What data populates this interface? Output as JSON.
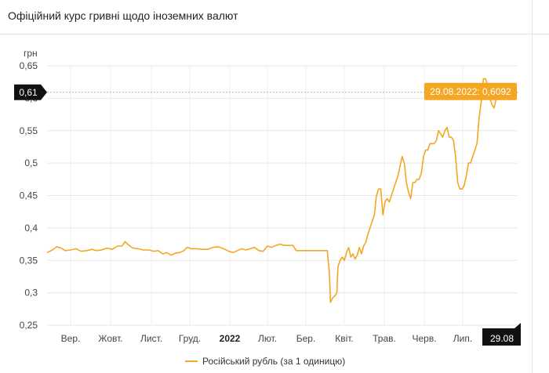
{
  "header": {
    "title": "Офіційний курс гривні щодо іноземних валют"
  },
  "colors": {
    "series": "#f5a623",
    "accent_dark": "#111111",
    "tooltip_bg": "#f5a623"
  },
  "chart_data": {
    "type": "line",
    "ylabel": "грн",
    "ylim": [
      0.25,
      0.65
    ],
    "yticks": [
      "0,25",
      "0,3",
      "0,35",
      "0,4",
      "0,45",
      "0,5",
      "0,55",
      "0,6",
      "0,65"
    ],
    "xticks": [
      "Вер.",
      "Жовт.",
      "Лист.",
      "Груд.",
      "2022",
      "Лют.",
      "Бер.",
      "Квіт.",
      "Трав.",
      "Черв.",
      "Лип."
    ],
    "xticks_bold": [
      "2022"
    ],
    "grid": true,
    "crosshair": {
      "y_label": "0,61",
      "x_label": "29.08"
    },
    "tooltip": "29.08.2022: 0,6092",
    "legend": {
      "position": "bottom",
      "entries": [
        "Російський рубль (за 1 одиницю)"
      ]
    },
    "series": [
      {
        "name": "Російський рубль (за 1 одиницю)",
        "points": [
          [
            0,
            0.362
          ],
          [
            5,
            0.366
          ],
          [
            9,
            0.371
          ],
          [
            13,
            0.369
          ],
          [
            17,
            0.365
          ],
          [
            22,
            0.366
          ],
          [
            27,
            0.368
          ],
          [
            32,
            0.364
          ],
          [
            37,
            0.365
          ],
          [
            42,
            0.367
          ],
          [
            46,
            0.365
          ],
          [
            51,
            0.366
          ],
          [
            56,
            0.369
          ],
          [
            61,
            0.367
          ],
          [
            66,
            0.372
          ],
          [
            70,
            0.372
          ],
          [
            73,
            0.379
          ],
          [
            76,
            0.374
          ],
          [
            80,
            0.369
          ],
          [
            85,
            0.368
          ],
          [
            90,
            0.366
          ],
          [
            95,
            0.366
          ],
          [
            100,
            0.364
          ],
          [
            104,
            0.365
          ],
          [
            108,
            0.36
          ],
          [
            112,
            0.362
          ],
          [
            116,
            0.358
          ],
          [
            120,
            0.361
          ],
          [
            124,
            0.362
          ],
          [
            128,
            0.365
          ],
          [
            131,
            0.37
          ],
          [
            135,
            0.368
          ],
          [
            140,
            0.368
          ],
          [
            145,
            0.367
          ],
          [
            150,
            0.367
          ],
          [
            155,
            0.37
          ],
          [
            160,
            0.371
          ],
          [
            165,
            0.368
          ],
          [
            170,
            0.364
          ],
          [
            174,
            0.362
          ],
          [
            178,
            0.365
          ],
          [
            182,
            0.368
          ],
          [
            186,
            0.366
          ],
          [
            190,
            0.368
          ],
          [
            194,
            0.37
          ],
          [
            198,
            0.365
          ],
          [
            202,
            0.364
          ],
          [
            206,
            0.372
          ],
          [
            210,
            0.37
          ],
          [
            214,
            0.373
          ],
          [
            218,
            0.375
          ],
          [
            222,
            0.373
          ],
          [
            226,
            0.373
          ],
          [
            230,
            0.373
          ],
          [
            233,
            0.365
          ],
          [
            238,
            0.365
          ],
          [
            245,
            0.365
          ],
          [
            252,
            0.365
          ],
          [
            258,
            0.365
          ],
          [
            262,
            0.365
          ],
          [
            264,
            0.33
          ],
          [
            265,
            0.285
          ],
          [
            267,
            0.292
          ],
          [
            269,
            0.295
          ],
          [
            271,
            0.3
          ],
          [
            272,
            0.34
          ],
          [
            274,
            0.35
          ],
          [
            276,
            0.355
          ],
          [
            278,
            0.35
          ],
          [
            280,
            0.362
          ],
          [
            282,
            0.37
          ],
          [
            284,
            0.355
          ],
          [
            286,
            0.36
          ],
          [
            288,
            0.352
          ],
          [
            290,
            0.358
          ],
          [
            292,
            0.37
          ],
          [
            294,
            0.36
          ],
          [
            296,
            0.372
          ],
          [
            298,
            0.378
          ],
          [
            300,
            0.39
          ],
          [
            302,
            0.4
          ],
          [
            304,
            0.41
          ],
          [
            306,
            0.42
          ],
          [
            308,
            0.45
          ],
          [
            310,
            0.46
          ],
          [
            312,
            0.46
          ],
          [
            314,
            0.42
          ],
          [
            316,
            0.44
          ],
          [
            318,
            0.445
          ],
          [
            320,
            0.44
          ],
          [
            322,
            0.45
          ],
          [
            324,
            0.46
          ],
          [
            326,
            0.47
          ],
          [
            328,
            0.48
          ],
          [
            330,
            0.495
          ],
          [
            332,
            0.51
          ],
          [
            334,
            0.5
          ],
          [
            336,
            0.47
          ],
          [
            338,
            0.455
          ],
          [
            340,
            0.445
          ],
          [
            342,
            0.47
          ],
          [
            344,
            0.47
          ],
          [
            346,
            0.475
          ],
          [
            348,
            0.475
          ],
          [
            350,
            0.485
          ],
          [
            352,
            0.51
          ],
          [
            354,
            0.52
          ],
          [
            356,
            0.52
          ],
          [
            358,
            0.53
          ],
          [
            360,
            0.53
          ],
          [
            362,
            0.53
          ],
          [
            364,
            0.535
          ],
          [
            366,
            0.55
          ],
          [
            368,
            0.545
          ],
          [
            370,
            0.54
          ],
          [
            372,
            0.55
          ],
          [
            374,
            0.555
          ],
          [
            376,
            0.54
          ],
          [
            378,
            0.54
          ],
          [
            380,
            0.535
          ],
          [
            382,
            0.51
          ],
          [
            384,
            0.47
          ],
          [
            386,
            0.46
          ],
          [
            388,
            0.46
          ],
          [
            390,
            0.465
          ],
          [
            392,
            0.48
          ],
          [
            394,
            0.5
          ],
          [
            396,
            0.5
          ],
          [
            398,
            0.51
          ],
          [
            400,
            0.52
          ],
          [
            402,
            0.53
          ],
          [
            404,
            0.57
          ],
          [
            406,
            0.595
          ],
          [
            408,
            0.63
          ],
          [
            410,
            0.63
          ],
          [
            412,
            0.62
          ],
          [
            414,
            0.6
          ],
          [
            416,
            0.59
          ],
          [
            418,
            0.585
          ],
          [
            420,
            0.6
          ],
          [
            422,
            0.605
          ],
          [
            424,
            0.6
          ],
          [
            426,
            0.605
          ],
          [
            428,
            0.6
          ],
          [
            430,
            0.61
          ],
          [
            432,
            0.605
          ],
          [
            434,
            0.61
          ],
          [
            436,
            0.612
          ],
          [
            438,
            0.608
          ],
          [
            440,
            0.6092
          ]
        ]
      }
    ]
  }
}
